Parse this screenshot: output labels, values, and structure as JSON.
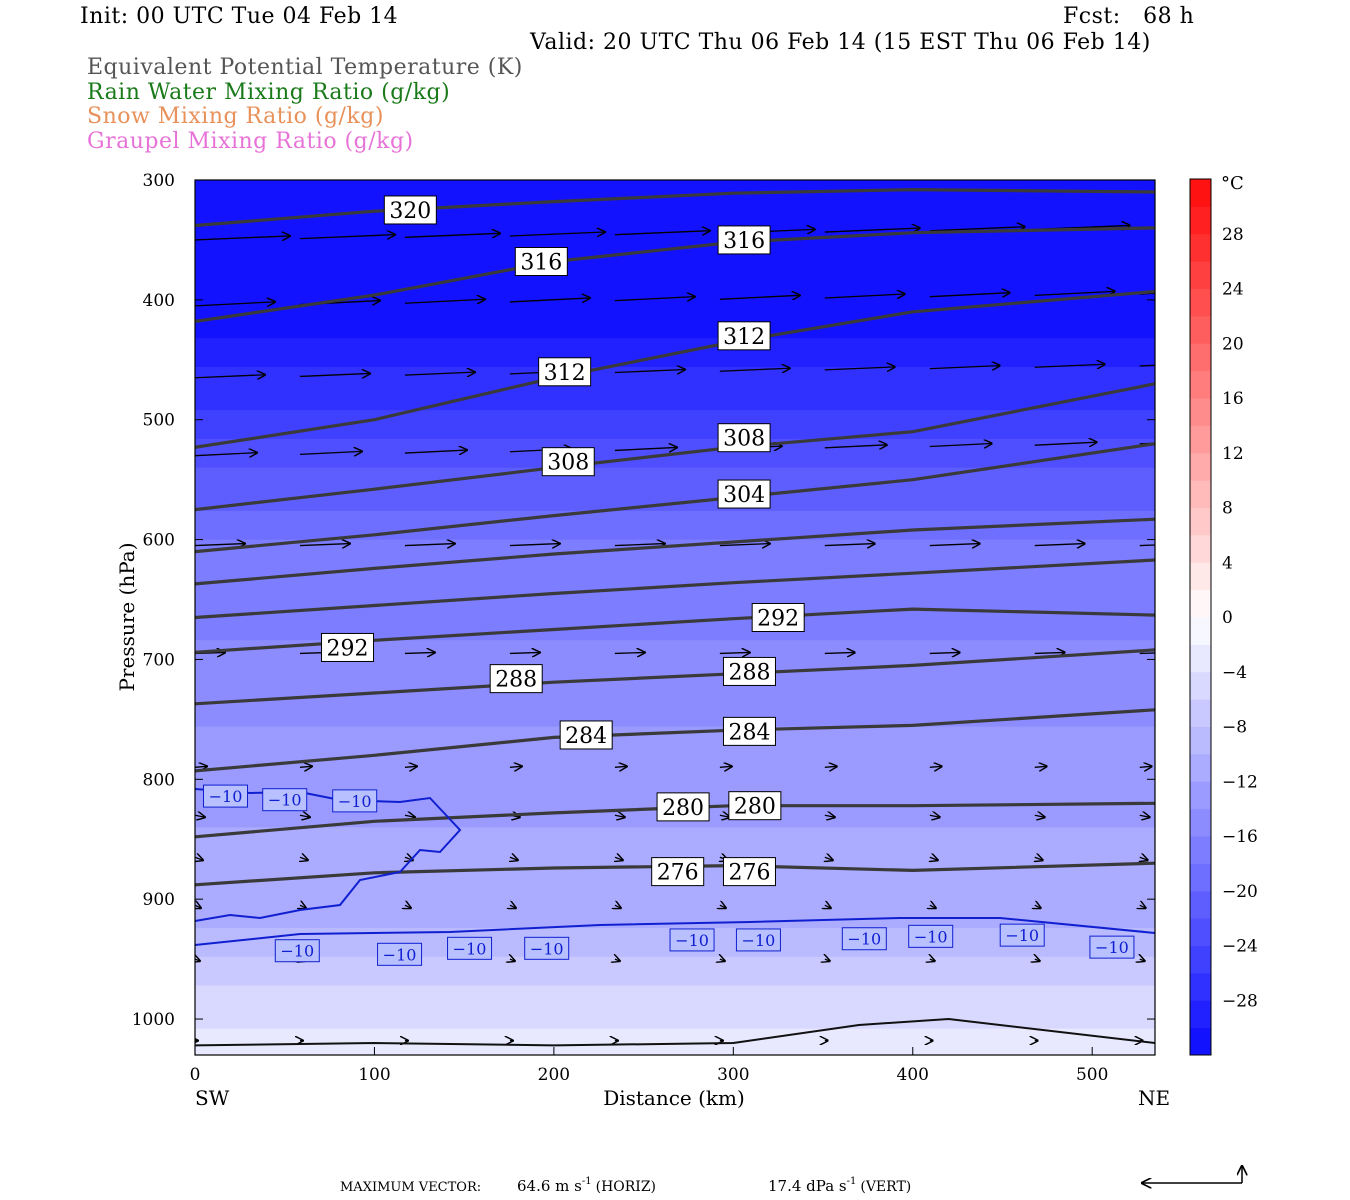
{
  "header": {
    "init": "Init: 00 UTC Tue 04 Feb 14",
    "fcst": "Fcst:   68 h",
    "valid": "Valid: 20 UTC Thu 06 Feb 14 (15 EST Thu 06 Feb 14)"
  },
  "legend": [
    {
      "text": "Equivalent Potential Temperature (K)",
      "color": "#555555"
    },
    {
      "text": "Rain Water Mixing Ratio (g/kg)",
      "color": "#1a7a1a"
    },
    {
      "text": "Snow Mixing Ratio (g/kg)",
      "color": "#e8915a"
    },
    {
      "text": "Graupel Mixing Ratio (g/kg)",
      "color": "#e873d8"
    }
  ],
  "chart_data": {
    "type": "contour",
    "xlabel": "Distance (km)",
    "ylabel": "Pressure (hPa)",
    "xlim": [
      0,
      535
    ],
    "ylim": [
      1030,
      300
    ],
    "xticks": [
      0,
      100,
      200,
      300,
      400,
      500
    ],
    "yticks": [
      300,
      400,
      500,
      600,
      700,
      800,
      900,
      1000
    ],
    "x_end_labels": {
      "left": "SW",
      "right": "NE"
    },
    "theta_e_contours": [
      {
        "level": 320,
        "points": [
          [
            0,
            338
          ],
          [
            100,
            326
          ],
          [
            200,
            318
          ],
          [
            300,
            311
          ],
          [
            400,
            308
          ],
          [
            535,
            310
          ]
        ],
        "labels": [
          [
            120,
            325
          ]
        ]
      },
      {
        "level": 316,
        "points": [
          [
            0,
            418
          ],
          [
            100,
            396
          ],
          [
            200,
            368
          ],
          [
            300,
            352
          ],
          [
            400,
            344
          ],
          [
            535,
            340
          ]
        ],
        "labels": [
          [
            193,
            368
          ],
          [
            306,
            350
          ]
        ]
      },
      {
        "level": 312,
        "points": [
          [
            0,
            523
          ],
          [
            100,
            500
          ],
          [
            200,
            465
          ],
          [
            300,
            435
          ],
          [
            400,
            410
          ],
          [
            535,
            393
          ]
        ],
        "labels": [
          [
            206,
            460
          ],
          [
            306,
            430
          ]
        ]
      },
      {
        "level": 308,
        "points": [
          [
            0,
            575
          ],
          [
            100,
            558
          ],
          [
            200,
            540
          ],
          [
            300,
            523
          ],
          [
            400,
            510
          ],
          [
            535,
            470
          ]
        ],
        "labels": [
          [
            208,
            535
          ],
          [
            306,
            515
          ]
        ]
      },
      {
        "level": 304,
        "points": [
          [
            0,
            610
          ],
          [
            100,
            596
          ],
          [
            200,
            580
          ],
          [
            300,
            565
          ],
          [
            400,
            550
          ],
          [
            535,
            520
          ]
        ],
        "labels": [
          [
            306,
            562
          ]
        ]
      },
      {
        "level": 300,
        "points": [
          [
            0,
            637
          ],
          [
            100,
            624
          ],
          [
            200,
            612
          ],
          [
            300,
            602
          ],
          [
            400,
            592
          ],
          [
            535,
            583
          ]
        ],
        "labels": []
      },
      {
        "level": 296,
        "points": [
          [
            0,
            665
          ],
          [
            100,
            655
          ],
          [
            200,
            645
          ],
          [
            300,
            636
          ],
          [
            400,
            628
          ],
          [
            535,
            617
          ]
        ],
        "labels": []
      },
      {
        "level": 292,
        "points": [
          [
            0,
            694
          ],
          [
            100,
            684
          ],
          [
            200,
            675
          ],
          [
            300,
            666
          ],
          [
            400,
            658
          ],
          [
            535,
            663
          ]
        ],
        "labels": [
          [
            85,
            690
          ],
          [
            325,
            665
          ]
        ]
      },
      {
        "level": 288,
        "points": [
          [
            0,
            737
          ],
          [
            100,
            728
          ],
          [
            200,
            719
          ],
          [
            300,
            712
          ],
          [
            400,
            705
          ],
          [
            535,
            692
          ]
        ],
        "labels": [
          [
            179,
            716
          ],
          [
            309,
            710
          ]
        ]
      },
      {
        "level": 284,
        "points": [
          [
            0,
            793
          ],
          [
            100,
            780
          ],
          [
            200,
            765
          ],
          [
            300,
            759
          ],
          [
            400,
            755
          ],
          [
            535,
            742
          ]
        ],
        "labels": [
          [
            218,
            763
          ],
          [
            309,
            760
          ]
        ]
      },
      {
        "level": 280,
        "points": [
          [
            0,
            848
          ],
          [
            100,
            835
          ],
          [
            200,
            828
          ],
          [
            300,
            822
          ],
          [
            400,
            822
          ],
          [
            535,
            820
          ]
        ],
        "labels": [
          [
            272,
            823
          ],
          [
            312,
            822
          ]
        ]
      },
      {
        "level": 276,
        "points": [
          [
            0,
            888
          ],
          [
            100,
            878
          ],
          [
            200,
            874
          ],
          [
            300,
            872
          ],
          [
            400,
            876
          ],
          [
            535,
            870
          ]
        ],
        "labels": [
          [
            269,
            877
          ],
          [
            309,
            877
          ]
        ]
      },
      {
        "level": 272,
        "points": [
          [
            0,
            1022
          ],
          [
            100,
            1020
          ],
          [
            200,
            1022
          ],
          [
            300,
            1020
          ],
          [
            370,
            1005
          ],
          [
            420,
            1000
          ],
          [
            535,
            1020
          ]
        ],
        "labels": []
      }
    ],
    "temperature_minus10_labels": [
      [
        17,
        814
      ],
      [
        50,
        817
      ],
      [
        89,
        818
      ],
      [
        57,
        943
      ],
      [
        114,
        946
      ],
      [
        153,
        941
      ],
      [
        196,
        941
      ],
      [
        277,
        934
      ],
      [
        314,
        934
      ],
      [
        373,
        933
      ],
      [
        410,
        931
      ],
      [
        461,
        930
      ],
      [
        511,
        940
      ]
    ],
    "colorbar": {
      "unit": "°C",
      "ticks": [
        28,
        24,
        20,
        16,
        12,
        8,
        4,
        0,
        -4,
        -8,
        -12,
        -16,
        -20,
        -24,
        -28
      ],
      "range": [
        -32,
        32
      ],
      "interval": 2
    },
    "footer": {
      "max_vector_label": "MAXIMUM VECTOR:",
      "horiz_value": "64.6 m s",
      "horiz_exp": "-1",
      "horiz_tag": "(HORIZ)",
      "vert_value": "17.4 dPa s",
      "vert_exp": "-1",
      "vert_tag": "(VERT)"
    }
  }
}
